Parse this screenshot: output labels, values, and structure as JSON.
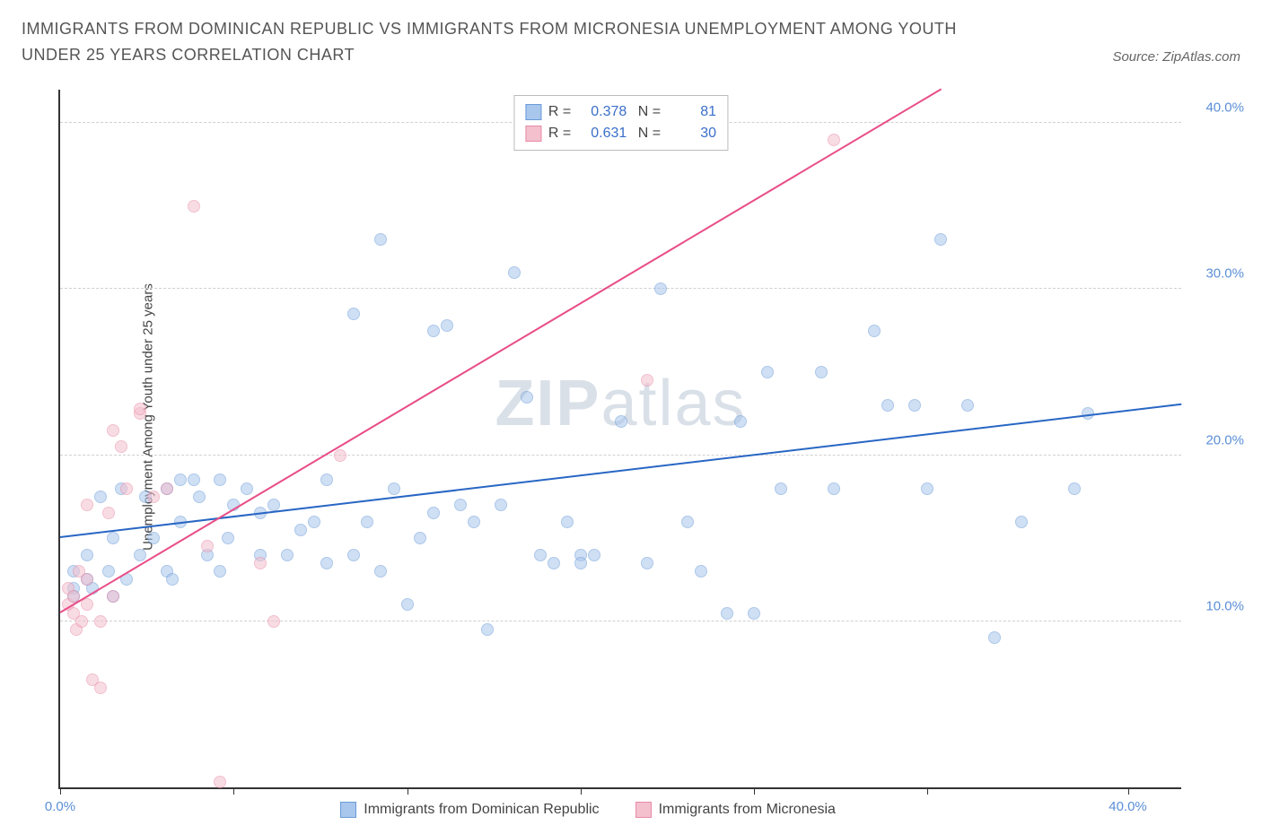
{
  "title": "IMMIGRANTS FROM DOMINICAN REPUBLIC VS IMMIGRANTS FROM MICRONESIA UNEMPLOYMENT AMONG YOUTH UNDER 25 YEARS CORRELATION CHART",
  "source": "Source: ZipAtlas.com",
  "y_axis_label": "Unemployment Among Youth under 25 years",
  "watermark": {
    "bold": "ZIP",
    "rest": "atlas"
  },
  "chart": {
    "type": "scatter",
    "xlim": [
      0,
      42
    ],
    "ylim": [
      0,
      42
    ],
    "y_ticks": [
      10,
      20,
      30,
      40
    ],
    "y_tick_labels": [
      "10.0%",
      "20.0%",
      "30.0%",
      "40.0%"
    ],
    "x_ticks": [
      0,
      6.5,
      13,
      19.5,
      26,
      32.5,
      40
    ],
    "x_tick_labels_shown": {
      "0": "0.0%",
      "40": "40.0%"
    },
    "background": "#ffffff",
    "grid_color": "#d0d0d0",
    "axis_color": "#333333",
    "tick_label_color": "#5b8fd6",
    "point_radius": 7,
    "point_opacity": 0.55,
    "series": [
      {
        "name": "Immigrants from Dominican Republic",
        "fill": "#a9c6ec",
        "stroke": "#6a9bd8",
        "trend_color": "#2866c4",
        "R": "0.378",
        "N": "81",
        "trendline": {
          "x1": 0,
          "y1": 15.0,
          "x2": 42,
          "y2": 23.0
        },
        "points": [
          [
            0.5,
            12
          ],
          [
            0.5,
            11.5
          ],
          [
            0.5,
            13
          ],
          [
            1,
            12.5
          ],
          [
            1,
            14
          ],
          [
            1.2,
            12
          ],
          [
            1.5,
            17.5
          ],
          [
            1.8,
            13
          ],
          [
            2,
            15
          ],
          [
            2,
            11.5
          ],
          [
            2.3,
            18
          ],
          [
            2.5,
            12.5
          ],
          [
            3,
            14
          ],
          [
            3.2,
            17.5
          ],
          [
            3.5,
            15
          ],
          [
            4,
            13
          ],
          [
            4,
            18
          ],
          [
            4.2,
            12.5
          ],
          [
            4.5,
            18.5
          ],
          [
            4.5,
            16
          ],
          [
            5,
            18.5
          ],
          [
            5.2,
            17.5
          ],
          [
            5.5,
            14
          ],
          [
            6,
            13
          ],
          [
            6,
            18.5
          ],
          [
            6.3,
            15
          ],
          [
            6.5,
            17
          ],
          [
            7,
            18
          ],
          [
            7.5,
            14
          ],
          [
            7.5,
            16.5
          ],
          [
            8,
            17
          ],
          [
            8.5,
            14
          ],
          [
            9,
            15.5
          ],
          [
            9.5,
            16
          ],
          [
            10,
            13.5
          ],
          [
            10,
            18.5
          ],
          [
            11,
            14
          ],
          [
            11,
            28.5
          ],
          [
            11.5,
            16
          ],
          [
            12,
            13
          ],
          [
            12,
            33
          ],
          [
            12.5,
            18
          ],
          [
            13,
            11
          ],
          [
            13.5,
            15
          ],
          [
            14,
            16.5
          ],
          [
            14,
            27.5
          ],
          [
            14.5,
            27.8
          ],
          [
            15,
            17
          ],
          [
            15.5,
            16
          ],
          [
            16,
            9.5
          ],
          [
            16.5,
            17
          ],
          [
            17,
            31
          ],
          [
            17.5,
            23.5
          ],
          [
            18,
            14
          ],
          [
            18.5,
            13.5
          ],
          [
            19,
            16
          ],
          [
            19.5,
            14
          ],
          [
            19.5,
            13.5
          ],
          [
            20,
            14
          ],
          [
            21,
            22
          ],
          [
            22,
            13.5
          ],
          [
            22.5,
            30
          ],
          [
            23.5,
            16
          ],
          [
            24,
            13
          ],
          [
            25,
            10.5
          ],
          [
            25.5,
            22
          ],
          [
            26,
            10.5
          ],
          [
            27,
            18
          ],
          [
            28.5,
            25
          ],
          [
            29,
            18
          ],
          [
            30.5,
            27.5
          ],
          [
            31,
            23
          ],
          [
            32,
            23
          ],
          [
            32.5,
            18
          ],
          [
            34,
            23
          ],
          [
            35,
            9
          ],
          [
            36,
            16
          ],
          [
            38,
            18
          ],
          [
            38.5,
            22.5
          ],
          [
            33,
            33
          ],
          [
            26.5,
            25
          ]
        ]
      },
      {
        "name": "Immigrants from Micronesia",
        "fill": "#f4c0ce",
        "stroke": "#e88ba6",
        "trend_color": "#e84d87",
        "R": "0.631",
        "N": "30",
        "trendline": {
          "x1": 0,
          "y1": 10.5,
          "x2": 33,
          "y2": 42
        },
        "points": [
          [
            0.3,
            12
          ],
          [
            0.3,
            11
          ],
          [
            0.5,
            10.5
          ],
          [
            0.5,
            11.5
          ],
          [
            0.6,
            9.5
          ],
          [
            0.7,
            13
          ],
          [
            0.8,
            10
          ],
          [
            1,
            17
          ],
          [
            1,
            11
          ],
          [
            1,
            12.5
          ],
          [
            1.2,
            6.5
          ],
          [
            1.5,
            6
          ],
          [
            1.5,
            10
          ],
          [
            1.8,
            16.5
          ],
          [
            2,
            11.5
          ],
          [
            2,
            21.5
          ],
          [
            2.3,
            20.5
          ],
          [
            2.5,
            18
          ],
          [
            3,
            22.5
          ],
          [
            3,
            22.8
          ],
          [
            3.5,
            17.5
          ],
          [
            4,
            18
          ],
          [
            5,
            35
          ],
          [
            5.5,
            14.5
          ],
          [
            6,
            0.3
          ],
          [
            7.5,
            13.5
          ],
          [
            8,
            10
          ],
          [
            10.5,
            20
          ],
          [
            22,
            24.5
          ],
          [
            29,
            39
          ]
        ]
      }
    ]
  },
  "bottom_legend": [
    {
      "swatch_fill": "#a9c6ec",
      "swatch_stroke": "#6a9bd8",
      "label": "Immigrants from Dominican Republic"
    },
    {
      "swatch_fill": "#f4c0ce",
      "swatch_stroke": "#e88ba6",
      "label": "Immigrants from Micronesia"
    }
  ]
}
